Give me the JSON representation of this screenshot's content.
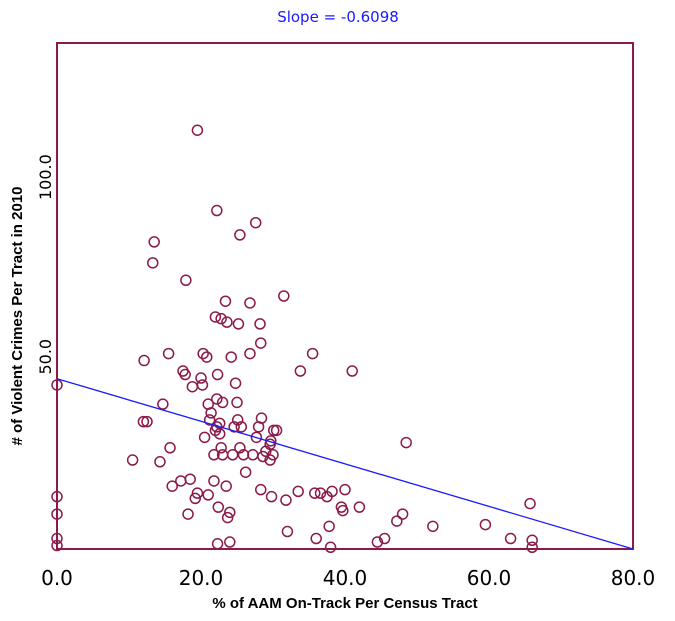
{
  "chart_data": {
    "type": "scatter",
    "title": "",
    "annotation": "Slope = -0.6098",
    "xlabel": "% of AAM On-Track Per Census Tract",
    "ylabel": "# of Violent Crimes Per Tract in 2010",
    "xlim": [
      0,
      80
    ],
    "ylim": [
      0,
      145
    ],
    "x_ticks": [
      0,
      20,
      40,
      60,
      80
    ],
    "x_tick_labels": [
      "0.0",
      "20.0",
      "40.0",
      "60.0",
      "80.0"
    ],
    "y_ticks": [
      50,
      100
    ],
    "y_tick_labels": [
      "50.0",
      "100.0"
    ],
    "grid": false,
    "legend": "none",
    "colors": {
      "points": "#8b1a4a",
      "frame": "#8b1a4a",
      "trend": "#1a1aff"
    },
    "trendline": {
      "intercept": 48.8,
      "slope": -0.6098
    },
    "series": [
      {
        "points": [
          [
            0,
            47
          ],
          [
            0,
            15
          ],
          [
            0,
            10
          ],
          [
            0,
            3
          ],
          [
            0,
            1
          ],
          [
            10.5,
            25.5
          ],
          [
            12,
            36.5
          ],
          [
            12.5,
            36.5
          ],
          [
            12.1,
            54
          ],
          [
            13.3,
            82
          ],
          [
            13.5,
            88
          ],
          [
            14.3,
            25
          ],
          [
            14.7,
            41.5
          ],
          [
            15.5,
            56
          ],
          [
            15.7,
            29
          ],
          [
            16.0,
            18
          ],
          [
            17.2,
            19.5
          ],
          [
            17.5,
            51
          ],
          [
            17.8,
            50
          ],
          [
            17.9,
            77
          ],
          [
            18.2,
            10
          ],
          [
            18.5,
            20
          ],
          [
            18.8,
            46.5
          ],
          [
            19.2,
            14.5
          ],
          [
            19.5,
            16
          ],
          [
            19.5,
            120
          ],
          [
            20.0,
            49
          ],
          [
            20.2,
            47
          ],
          [
            20.3,
            56
          ],
          [
            20.5,
            32
          ],
          [
            20.8,
            55
          ],
          [
            21.0,
            15.5
          ],
          [
            21.0,
            41.5
          ],
          [
            21.2,
            37
          ],
          [
            21.4,
            39
          ],
          [
            21.8,
            19.5
          ],
          [
            21.8,
            27
          ],
          [
            22.0,
            66.5
          ],
          [
            22.0,
            34
          ],
          [
            22.2,
            43
          ],
          [
            22.2,
            35
          ],
          [
            22.2,
            97
          ],
          [
            22.3,
            50
          ],
          [
            22.3,
            1.5
          ],
          [
            22.4,
            12
          ],
          [
            22.6,
            36
          ],
          [
            22.6,
            33
          ],
          [
            22.8,
            29
          ],
          [
            22.8,
            66
          ],
          [
            23.0,
            42
          ],
          [
            23.0,
            27
          ],
          [
            23.4,
            71
          ],
          [
            23.5,
            18
          ],
          [
            23.6,
            65
          ],
          [
            23.7,
            9
          ],
          [
            24.0,
            10.5
          ],
          [
            24.0,
            2
          ],
          [
            24.2,
            55
          ],
          [
            24.4,
            27
          ],
          [
            24.6,
            35
          ],
          [
            24.8,
            47.5
          ],
          [
            25.0,
            42
          ],
          [
            25.1,
            37
          ],
          [
            25.2,
            64.5
          ],
          [
            25.4,
            90
          ],
          [
            25.4,
            29
          ],
          [
            25.6,
            35
          ],
          [
            25.9,
            27
          ],
          [
            26.2,
            22
          ],
          [
            26.8,
            56
          ],
          [
            26.8,
            70.5
          ],
          [
            27.2,
            27
          ],
          [
            27.6,
            93.5
          ],
          [
            27.7,
            32
          ],
          [
            28.0,
            35
          ],
          [
            28.2,
            64.5
          ],
          [
            28.3,
            59
          ],
          [
            28.3,
            17
          ],
          [
            28.4,
            37.5
          ],
          [
            28.6,
            26.5
          ],
          [
            29.0,
            28
          ],
          [
            29.6,
            25.5
          ],
          [
            29.6,
            30
          ],
          [
            29.7,
            31
          ],
          [
            29.8,
            15
          ],
          [
            30.0,
            27
          ],
          [
            30.1,
            34
          ],
          [
            30.5,
            34
          ],
          [
            31.5,
            72.5
          ],
          [
            31.8,
            14
          ],
          [
            32.0,
            5
          ],
          [
            33.5,
            16.5
          ],
          [
            33.8,
            51
          ],
          [
            35.5,
            56
          ],
          [
            35.8,
            16
          ],
          [
            36.0,
            3
          ],
          [
            36.6,
            16
          ],
          [
            37.5,
            15
          ],
          [
            37.8,
            6.5
          ],
          [
            38.0,
            0.5
          ],
          [
            38.2,
            16.5
          ],
          [
            39.5,
            12
          ],
          [
            39.7,
            11
          ],
          [
            40.0,
            17
          ],
          [
            41.0,
            51
          ],
          [
            42.0,
            12
          ],
          [
            44.5,
            2
          ],
          [
            45.5,
            3
          ],
          [
            47.2,
            8
          ],
          [
            48.0,
            10
          ],
          [
            48.5,
            30.5
          ],
          [
            52.2,
            6.5
          ],
          [
            59.5,
            7
          ],
          [
            63.0,
            3
          ],
          [
            65.7,
            13
          ],
          [
            66.0,
            2.5
          ],
          [
            66.0,
            0.5
          ]
        ]
      }
    ]
  }
}
